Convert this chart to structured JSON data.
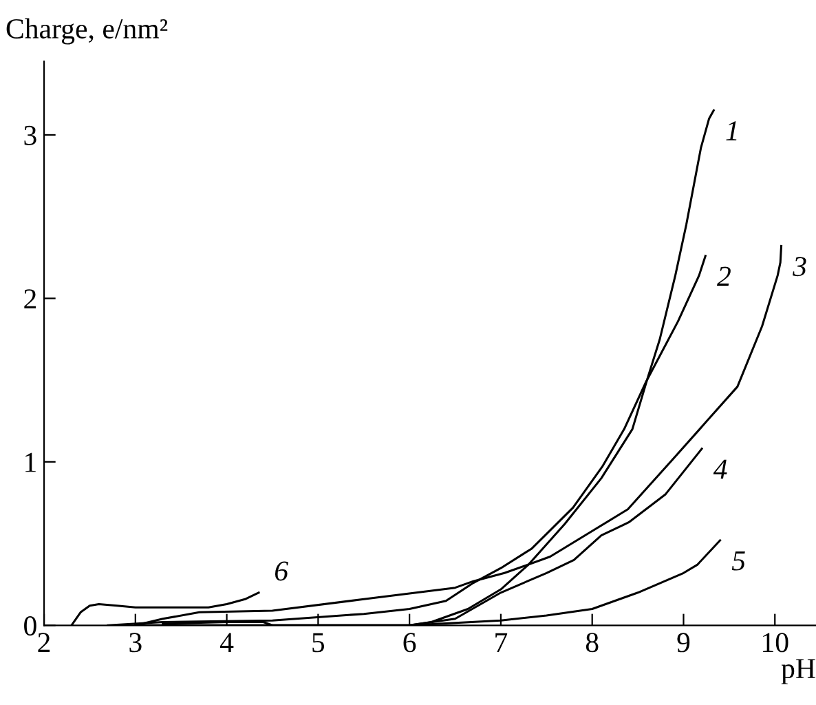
{
  "chart_data": {
    "type": "line",
    "xlabel": "pH",
    "ylabel": "Charge, e/nm²",
    "xlim": [
      2,
      10.45
    ],
    "ylim": [
      0,
      3.45
    ],
    "xticks": [
      2,
      3,
      4,
      5,
      6,
      7,
      8,
      9,
      10
    ],
    "yticks": [
      0,
      1,
      2,
      3
    ],
    "grid": false,
    "legend": false,
    "marker": "none",
    "line_style": "solid",
    "series": [
      {
        "name": "1",
        "color": "#000000",
        "x": [
          3.0,
          6.0,
          6.24,
          6.64,
          7.0,
          7.3,
          7.7,
          8.1,
          8.44,
          8.6,
          8.74,
          8.91,
          9.03,
          9.19,
          9.28,
          9.33
        ],
        "values": [
          0,
          0,
          0.02,
          0.1,
          0.22,
          0.37,
          0.62,
          0.9,
          1.2,
          1.5,
          1.75,
          2.14,
          2.45,
          2.92,
          3.1,
          3.15
        ]
      },
      {
        "name": "2",
        "color": "#000000",
        "x": [
          2.7,
          3.3,
          4.5,
          5.5,
          6.0,
          6.4,
          6.7,
          7.0,
          7.34,
          7.79,
          8.11,
          8.35,
          8.59,
          8.94,
          9.17,
          9.24
        ],
        "values": [
          0,
          0.02,
          0.03,
          0.07,
          0.1,
          0.15,
          0.26,
          0.35,
          0.47,
          0.72,
          0.97,
          1.2,
          1.49,
          1.86,
          2.14,
          2.26
        ]
      },
      {
        "name": "3",
        "color": "#000000",
        "x": [
          3.0,
          3.3,
          3.7,
          4.5,
          5.5,
          6.5,
          6.7,
          7.04,
          7.54,
          8.01,
          8.39,
          8.89,
          9.24,
          9.59,
          9.86,
          10.03,
          10.06,
          10.07
        ],
        "values": [
          0,
          0.04,
          0.08,
          0.09,
          0.16,
          0.23,
          0.27,
          0.32,
          0.42,
          0.58,
          0.71,
          1.02,
          1.24,
          1.46,
          1.83,
          2.14,
          2.22,
          2.32
        ]
      },
      {
        "name": "4",
        "color": "#000000",
        "x": [
          3.3,
          4.0,
          4.4,
          4.5,
          6.0,
          6.5,
          7.0,
          7.5,
          7.8,
          8.1,
          8.4,
          8.8,
          9.2
        ],
        "values": [
          0.01,
          0.02,
          0.02,
          0,
          0,
          0.04,
          0.2,
          0.32,
          0.4,
          0.55,
          0.63,
          0.8,
          1.08
        ]
      },
      {
        "name": "5",
        "color": "#000000",
        "x": [
          3.0,
          6.0,
          7.0,
          7.5,
          8.0,
          8.5,
          9.0,
          9.15,
          9.4
        ],
        "values": [
          0,
          0,
          0.03,
          0.06,
          0.1,
          0.2,
          0.32,
          0.37,
          0.52
        ]
      },
      {
        "name": "6",
        "color": "#000000",
        "x": [
          2.3,
          2.4,
          2.5,
          2.6,
          2.8,
          3.0,
          3.5,
          3.8,
          4.0,
          4.2,
          4.35
        ],
        "values": [
          0,
          0.08,
          0.12,
          0.13,
          0.12,
          0.11,
          0.11,
          0.11,
          0.13,
          0.16,
          0.2
        ]
      }
    ]
  }
}
